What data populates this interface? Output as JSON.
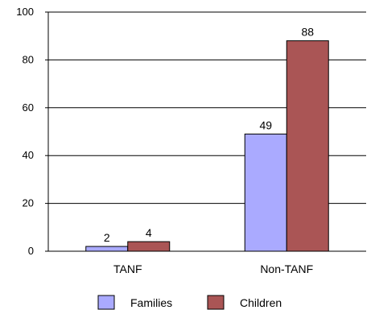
{
  "chart_data": {
    "type": "bar",
    "categories": [
      "TANF",
      "Non-TANF"
    ],
    "series": [
      {
        "name": "Families",
        "values": [
          2,
          49
        ],
        "color": "#aaaaff"
      },
      {
        "name": "Children",
        "values": [
          4,
          88
        ],
        "color": "#aa5555"
      }
    ],
    "ylim": [
      0,
      100
    ],
    "yticks": [
      0,
      20,
      40,
      60,
      80,
      100
    ],
    "grid": true,
    "legend_position": "bottom"
  }
}
